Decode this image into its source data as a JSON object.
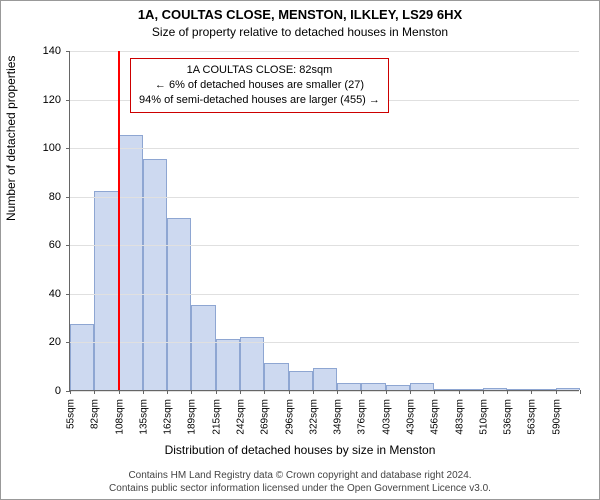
{
  "title_main": "1A, COULTAS CLOSE, MENSTON, ILKLEY, LS29 6HX",
  "title_sub": "Size of property relative to detached houses in Menston",
  "y_axis_label": "Number of detached properties",
  "x_axis_label": "Distribution of detached houses by size in Menston",
  "chart": {
    "type": "histogram",
    "ylim": [
      0,
      140
    ],
    "yticks": [
      0,
      20,
      40,
      60,
      80,
      100,
      120,
      140
    ],
    "x_labels": [
      "55sqm",
      "82sqm",
      "108sqm",
      "135sqm",
      "162sqm",
      "189sqm",
      "215sqm",
      "242sqm",
      "269sqm",
      "296sqm",
      "322sqm",
      "349sqm",
      "376sqm",
      "403sqm",
      "430sqm",
      "456sqm",
      "483sqm",
      "510sqm",
      "536sqm",
      "563sqm",
      "590sqm"
    ],
    "values": [
      27,
      82,
      105,
      95,
      71,
      35,
      21,
      22,
      11,
      8,
      9,
      3,
      3,
      2,
      3,
      0,
      0,
      1,
      0,
      0,
      1
    ],
    "bar_fill": "#cdd9f0",
    "bar_stroke": "#8ea6d2",
    "indicator_x_index": 1,
    "indicator_color": "#ff0000",
    "grid_color": "#e0e0e0",
    "axis_color": "#666666",
    "background_color": "#ffffff",
    "annotation_border": "#cc0000"
  },
  "annotation": {
    "line1": "1A COULTAS CLOSE: 82sqm",
    "line2": "← 6% of detached houses are smaller (27)",
    "line3": "94% of semi-detached houses are larger (455) →"
  },
  "footer": {
    "line1": "Contains HM Land Registry data © Crown copyright and database right 2024.",
    "line2": "Contains public sector information licensed under the Open Government Licence v3.0."
  }
}
